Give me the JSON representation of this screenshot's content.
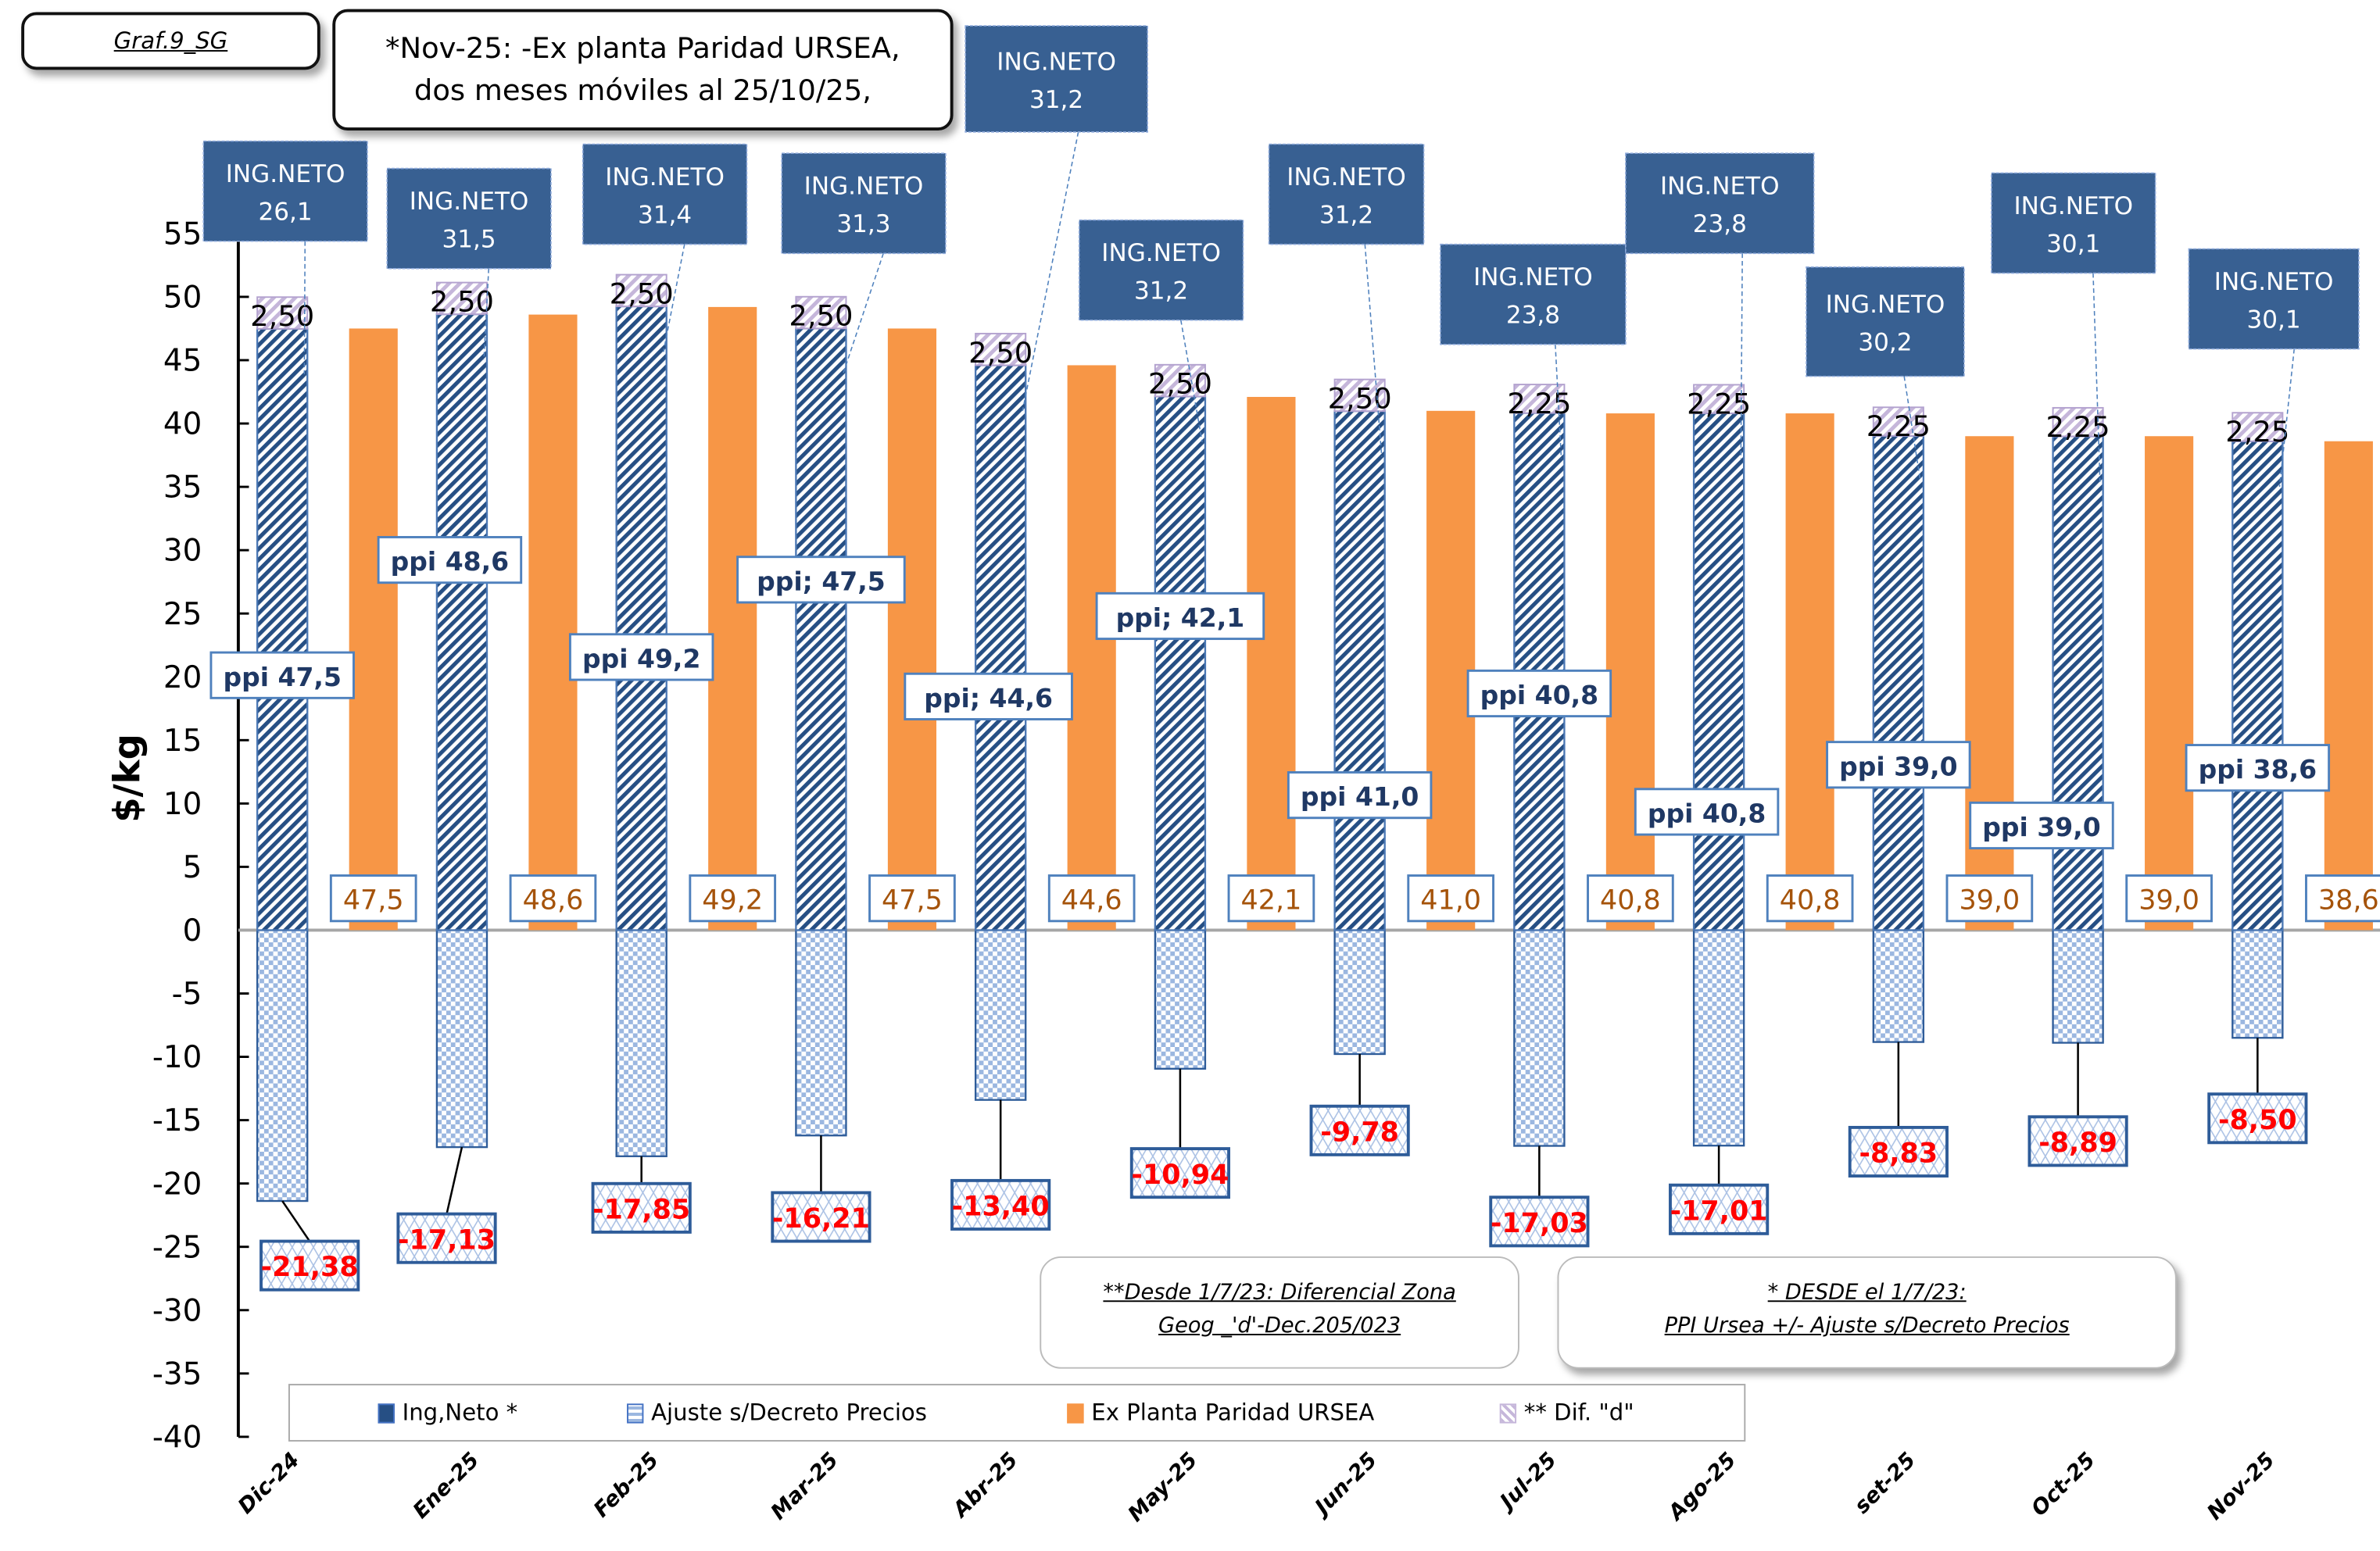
{
  "header": {
    "graph_id": "Graf.9_SG",
    "note_line1": "*Nov-25: -Ex planta Paridad URSEA,",
    "note_line2": "dos meses móviles al 25/10/25,"
  },
  "notes": {
    "note1_line1": "**Desde 1/7/23: Diferencial Zona",
    "note1_line2": "Geog _'d'-Dec.205/023",
    "note2_line1": "* DESDE el 1/7/23:",
    "note2_line2": "PPI Ursea +/- Ajuste s/Decreto Precios"
  },
  "colors": {
    "ing_neto": "#264f84",
    "ajuste": "#9bb7e0",
    "ex_planta": "#f79646",
    "dif_d": "#c5b6da",
    "label_red": "#ff0000",
    "label_brown": "#a5530a",
    "callout_blue": "#386092"
  },
  "chart_data": {
    "type": "bar",
    "title": "",
    "xlabel": "",
    "ylabel": "$/kg",
    "ylim": [
      -40,
      55
    ],
    "ytick_step": 5,
    "yticks": [
      "55",
      "50",
      "45",
      "40",
      "35",
      "30",
      "25",
      "20",
      "15",
      "10",
      "5",
      "0",
      "-5",
      "-10",
      "-15",
      "-20",
      "-25",
      "-30",
      "-35",
      "-40"
    ],
    "categories": [
      "Dic-24",
      "Ene-25",
      "Feb-25",
      "Mar-25",
      "Abr-25",
      "May-25",
      "Jun-25",
      "Jul-25",
      "Ago-25",
      "set-25",
      "Oct-25",
      "Nov-25"
    ],
    "legend_position": "bottom",
    "legend": [
      "Ing,Neto *",
      "Ajuste s/Decreto Precios",
      "Ex Planta Paridad URSEA",
      "** Dif. \"d\""
    ],
    "series": [
      {
        "name": "Ing,Neto *",
        "stack": "a",
        "values": [
          26.1,
          31.5,
          31.4,
          31.3,
          31.2,
          31.2,
          31.2,
          23.8,
          23.8,
          30.2,
          30.1,
          30.1
        ]
      },
      {
        "name": "Ajuste s/Decreto Precios",
        "stack": "a",
        "values": [
          -21.38,
          -17.13,
          -17.85,
          -16.21,
          -13.4,
          -10.94,
          -9.78,
          -17.03,
          -17.01,
          -8.83,
          -8.89,
          -8.5
        ]
      },
      {
        "name": "Ex Planta Paridad URSEA",
        "stack": "b",
        "values": [
          47.5,
          48.6,
          49.2,
          47.5,
          44.6,
          42.1,
          41.0,
          40.8,
          40.8,
          39.0,
          39.0,
          38.6
        ]
      },
      {
        "name": "** Dif. \"d\"",
        "stack": "a",
        "values": [
          2.5,
          2.5,
          2.5,
          2.5,
          2.5,
          2.5,
          2.5,
          2.25,
          2.25,
          2.25,
          2.25,
          2.25
        ]
      }
    ],
    "ppi_values": [
      47.5,
      48.6,
      49.2,
      47.5,
      44.6,
      42.1,
      41.0,
      40.8,
      40.8,
      39.0,
      39.0,
      38.6
    ],
    "annotations": {
      "ing_neto_labels": [
        "ING.NETO\n26,1",
        "ING.NETO\n31,5",
        "ING.NETO\n31,4",
        "ING.NETO\n31,3",
        "ING.NETO\n31,2",
        "ING.NETO\n31,2",
        "ING.NETO\n31,2",
        "ING.NETO\n23,8",
        "ING.NETO\n23,8",
        "ING.NETO\n30,2",
        "ING.NETO\n30,1",
        "ING.NETO\n30,1"
      ],
      "ppi_labels": [
        "ppi 47,5",
        "ppi 48,6",
        "ppi 49,2",
        "ppi; 47,5",
        "ppi; 44,6",
        "ppi; 42,1",
        "ppi 41,0",
        "ppi 40,8",
        "ppi 40,8",
        "ppi 39,0",
        "ppi 39,0",
        "ppi 38,6"
      ],
      "ex_planta_labels": [
        "47,5",
        "48,6",
        "49,2",
        "47,5",
        "44,6",
        "42,1",
        "41,0",
        "40,8",
        "40,8",
        "39,0",
        "39,0",
        "38,6"
      ],
      "ajuste_labels": [
        "-21,38",
        "-17,13",
        "-17,85",
        "-16,21",
        "-13,40",
        "-10,94",
        "-9,78",
        "-17,03",
        "-17,01",
        "-8,83",
        "-8,89",
        "-8,50"
      ],
      "dif_labels": [
        "2,50",
        "2,50",
        "2,50",
        "2,50",
        "2,50",
        "2,50",
        "2,50",
        "2,25",
        "2,25",
        "2,25",
        "2,25",
        "2,25"
      ]
    }
  }
}
